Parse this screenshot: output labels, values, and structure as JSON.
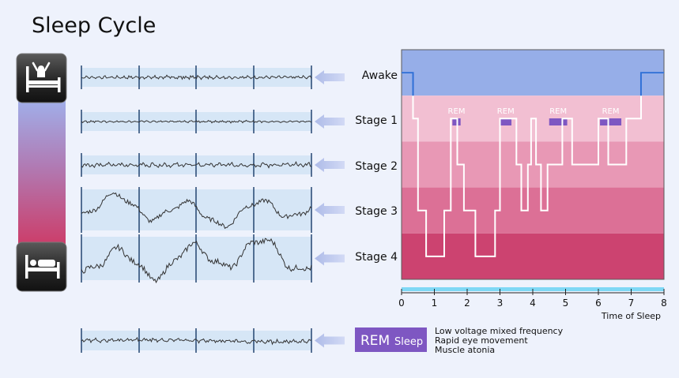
{
  "title": "Sleep Cycle",
  "icons": {
    "top": "awake-person-in-bed-icon",
    "bottom": "sleeping-person-in-bed-icon"
  },
  "stages": [
    {
      "label": "Awake",
      "amplitude": 0.18,
      "frequency": "high"
    },
    {
      "label": "Stage 1",
      "amplitude": 0.12,
      "frequency": "high"
    },
    {
      "label": "Stage 2",
      "amplitude": 0.25,
      "frequency": "medium"
    },
    {
      "label": "Stage 3",
      "amplitude": 0.7,
      "frequency": "low"
    },
    {
      "label": "Stage 4",
      "amplitude": 0.85,
      "frequency": "low"
    }
  ],
  "rem": {
    "badge_main": "REM",
    "badge_sub": "Sleep",
    "badge_color": "#7e57c2",
    "notes": [
      "Low voltage mixed frequency",
      "Rapid eye movement",
      "Muscle atonia"
    ]
  },
  "chart_data": {
    "type": "line",
    "xlabel": "Time of Sleep",
    "x_ticks": [
      0,
      1,
      2,
      3,
      4,
      5,
      6,
      7,
      8
    ],
    "xlim": [
      0,
      8
    ],
    "y_levels": [
      "Awake",
      "Stage 1",
      "Stage 2",
      "Stage 3",
      "Stage 4"
    ],
    "band_colors": [
      "#96aee8",
      "#f2bfd2",
      "#e898b5",
      "#dc7096",
      "#cc4370"
    ],
    "line_color": "#ffffff",
    "hypnogram": [
      [
        0.0,
        0
      ],
      [
        0.35,
        0
      ],
      [
        0.35,
        1
      ],
      [
        0.5,
        1
      ],
      [
        0.5,
        3
      ],
      [
        0.75,
        3
      ],
      [
        0.75,
        4
      ],
      [
        1.3,
        4
      ],
      [
        1.3,
        3
      ],
      [
        1.5,
        3
      ],
      [
        1.5,
        1
      ],
      [
        1.7,
        1
      ],
      [
        1.7,
        2
      ],
      [
        1.9,
        2
      ],
      [
        1.9,
        3
      ],
      [
        2.25,
        3
      ],
      [
        2.25,
        4
      ],
      [
        2.85,
        4
      ],
      [
        2.85,
        3
      ],
      [
        3.0,
        3
      ],
      [
        3.0,
        1
      ],
      [
        3.5,
        1
      ],
      [
        3.5,
        2
      ],
      [
        3.65,
        2
      ],
      [
        3.65,
        3
      ],
      [
        3.85,
        3
      ],
      [
        3.85,
        2
      ],
      [
        3.95,
        2
      ],
      [
        3.95,
        1
      ],
      [
        4.1,
        1
      ],
      [
        4.1,
        2
      ],
      [
        4.25,
        2
      ],
      [
        4.25,
        3
      ],
      [
        4.45,
        3
      ],
      [
        4.45,
        2
      ],
      [
        4.9,
        2
      ],
      [
        4.9,
        1
      ],
      [
        5.2,
        1
      ],
      [
        5.2,
        2
      ],
      [
        6.0,
        2
      ],
      [
        6.0,
        1
      ],
      [
        6.3,
        1
      ],
      [
        6.3,
        2
      ],
      [
        6.85,
        2
      ],
      [
        6.85,
        1
      ],
      [
        7.3,
        1
      ],
      [
        7.3,
        0
      ],
      [
        8.0,
        0
      ]
    ],
    "rem_periods": [
      {
        "label": "REM",
        "start": 1.55,
        "end": 1.8
      },
      {
        "label": "REM",
        "start": 3.0,
        "end": 3.35
      },
      {
        "label": "REM",
        "start": 4.5,
        "end": 5.05
      },
      {
        "label": "REM",
        "start": 6.05,
        "end": 6.7
      }
    ],
    "grid": false
  }
}
